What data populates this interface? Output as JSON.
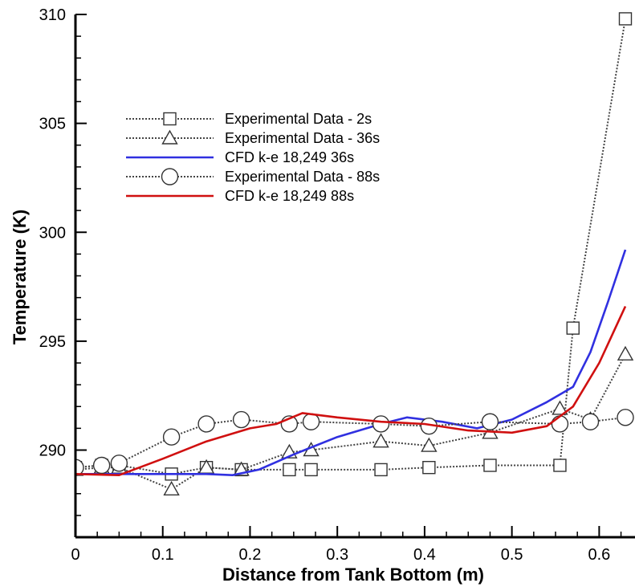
{
  "chart_data": {
    "type": "line",
    "xlabel": "Distance from Tank Bottom (m)",
    "ylabel": "Temperature (K)",
    "xlim": [
      0,
      0.63
    ],
    "ylim": [
      286,
      310
    ],
    "xticks": [
      0,
      0.1,
      0.2,
      0.3,
      0.4,
      0.5,
      0.6
    ],
    "xtick_labels": [
      "0",
      "0.1",
      "0.2",
      "0.3",
      "0.4",
      "0.5",
      "0.6"
    ],
    "yticks": [
      290,
      295,
      300,
      305,
      310
    ],
    "ytick_labels": [
      "290",
      "295",
      "300",
      "305",
      "310"
    ],
    "legend_position": "upper-left",
    "series": [
      {
        "name": "Experimental Data - 2s",
        "style": "dotted",
        "marker": "square",
        "color": "#000000",
        "x": [
          0.0,
          0.03,
          0.05,
          0.11,
          0.15,
          0.19,
          0.245,
          0.27,
          0.35,
          0.405,
          0.475,
          0.555,
          0.57,
          0.63
        ],
        "y": [
          289.2,
          289.3,
          289.3,
          288.9,
          289.2,
          289.1,
          289.1,
          289.1,
          289.1,
          289.2,
          289.3,
          289.3,
          295.6,
          309.8
        ]
      },
      {
        "name": "Experimental Data - 36s",
        "style": "dotted",
        "marker": "triangle",
        "color": "#000000",
        "x": [
          0.0,
          0.03,
          0.05,
          0.11,
          0.15,
          0.19,
          0.245,
          0.27,
          0.35,
          0.405,
          0.475,
          0.555,
          0.59,
          0.63
        ],
        "y": [
          289.1,
          289.2,
          289.2,
          288.2,
          289.2,
          289.1,
          289.9,
          290.0,
          290.4,
          290.2,
          290.8,
          291.9,
          291.4,
          294.4
        ]
      },
      {
        "name": "CFD k-e 18,249 36s",
        "style": "solid",
        "marker": "none",
        "color": "#3030e0",
        "x": [
          0.0,
          0.05,
          0.1,
          0.15,
          0.18,
          0.21,
          0.25,
          0.3,
          0.35,
          0.38,
          0.42,
          0.46,
          0.5,
          0.54,
          0.57,
          0.59,
          0.61,
          0.63
        ],
        "y": [
          288.9,
          288.9,
          288.9,
          288.9,
          288.85,
          289.1,
          289.8,
          290.6,
          291.2,
          291.5,
          291.3,
          291.0,
          291.4,
          292.2,
          292.9,
          294.5,
          296.8,
          299.2
        ]
      },
      {
        "name": "Experimental Data - 88s",
        "style": "dotted",
        "marker": "circle",
        "color": "#000000",
        "x": [
          0.0,
          0.03,
          0.05,
          0.11,
          0.15,
          0.19,
          0.245,
          0.27,
          0.35,
          0.405,
          0.475,
          0.555,
          0.59,
          0.63
        ],
        "y": [
          289.2,
          289.3,
          289.4,
          290.6,
          291.2,
          291.4,
          291.2,
          291.3,
          291.2,
          291.1,
          291.3,
          291.2,
          291.3,
          291.5
        ]
      },
      {
        "name": "CFD k-e 18,249 88s",
        "style": "solid",
        "marker": "none",
        "color": "#d01010",
        "x": [
          0.0,
          0.05,
          0.1,
          0.15,
          0.2,
          0.23,
          0.26,
          0.3,
          0.35,
          0.4,
          0.45,
          0.5,
          0.54,
          0.57,
          0.6,
          0.63
        ],
        "y": [
          288.9,
          288.85,
          289.6,
          290.4,
          291.0,
          291.2,
          291.7,
          291.5,
          291.3,
          291.2,
          290.9,
          290.8,
          291.1,
          292.0,
          294.0,
          296.6
        ]
      }
    ]
  }
}
